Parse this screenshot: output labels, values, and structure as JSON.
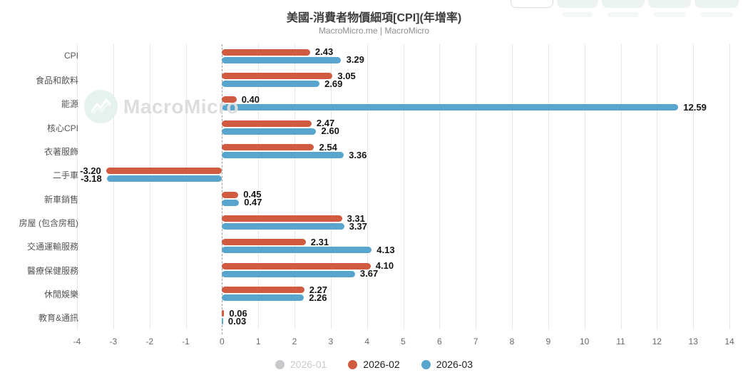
{
  "header": {
    "title": "美國-消費者物價細項[CPI](年增率)",
    "subtitle": "MacroMicro.me | MacroMicro"
  },
  "watermark": {
    "text": "MacroMicro"
  },
  "toolbar": {
    "note": "five partially cut-off buttons at top edge, labels not visible",
    "buttons": [
      "",
      "",
      "",
      "",
      ""
    ]
  },
  "chart_data": {
    "type": "bar",
    "orientation": "horizontal",
    "title": "美國-消費者物價細項[CPI](年增率)",
    "subtitle": "MacroMicro.me | MacroMicro",
    "categories": [
      "CPI",
      "食品和飲料",
      "能源",
      "核心CPI",
      "衣著服飾",
      "二手車",
      "新車銷售",
      "房屋 (包含房租)",
      "交通運輸服務",
      "醫療保健服務",
      "休閒娛樂",
      "教育&通訊"
    ],
    "series": [
      {
        "name": "2026-01",
        "color": "#c8c8cc",
        "disabled": true,
        "values": null
      },
      {
        "name": "2026-02",
        "color": "#d15b41",
        "disabled": false,
        "values": [
          2.43,
          3.05,
          0.4,
          2.47,
          2.54,
          -3.2,
          0.45,
          3.31,
          2.31,
          4.1,
          2.27,
          0.06
        ]
      },
      {
        "name": "2026-03",
        "color": "#58a5ce",
        "disabled": false,
        "values": [
          3.29,
          2.69,
          12.59,
          2.6,
          3.36,
          -3.18,
          0.47,
          3.37,
          4.13,
          3.67,
          2.26,
          0.03
        ]
      }
    ],
    "xlim": [
      -4,
      14
    ],
    "xticks": [
      -4,
      -3,
      -2,
      -1,
      0,
      1,
      2,
      3,
      4,
      5,
      6,
      7,
      8,
      9,
      10,
      11,
      12,
      13,
      14
    ],
    "grid": "vertical",
    "zero_line": "dashed",
    "value_labels": "two-decimals",
    "legend_position": "bottom"
  },
  "colors": {
    "grid": "#e7e7e7",
    "zero_line": "#9f9f9f",
    "series_red": "#d15b41",
    "series_blue": "#58a5ce",
    "disabled_gray": "#c8c8cc"
  }
}
